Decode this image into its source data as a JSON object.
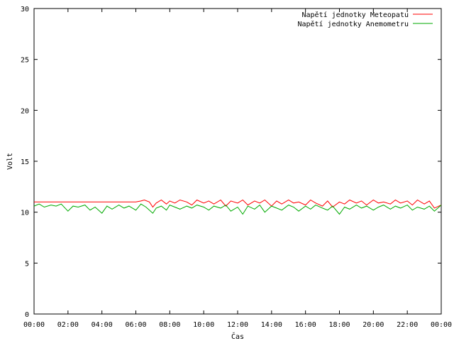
{
  "chart_data": {
    "type": "line",
    "title": "",
    "xlabel": "Čas",
    "ylabel": "Volt",
    "x_ticks": [
      "00:00",
      "02:00",
      "04:00",
      "06:00",
      "08:00",
      "10:00",
      "12:00",
      "14:00",
      "16:00",
      "18:00",
      "20:00",
      "22:00",
      "00:00"
    ],
    "x_range_hours": [
      0,
      24
    ],
    "y_ticks": [
      "0",
      "5",
      "10",
      "15",
      "20",
      "25",
      "30"
    ],
    "ylim": [
      0,
      30
    ],
    "grid": false,
    "legend_position": "top-right",
    "series": [
      {
        "name": "Napětí jednotky Meteopatu",
        "color": "#ff0000",
        "x_hours": [
          0,
          1,
          2,
          3,
          4,
          5,
          6,
          6.3,
          6.5,
          6.8,
          7,
          7.2,
          7.5,
          7.8,
          8,
          8.3,
          8.6,
          9,
          9.3,
          9.6,
          10,
          10.3,
          10.6,
          11,
          11.3,
          11.6,
          12,
          12.3,
          12.6,
          13,
          13.3,
          13.6,
          14,
          14.3,
          14.6,
          15,
          15.3,
          15.6,
          16,
          16.3,
          16.6,
          17,
          17.3,
          17.6,
          18,
          18.3,
          18.6,
          19,
          19.3,
          19.6,
          20,
          20.3,
          20.6,
          21,
          21.3,
          21.6,
          22,
          22.3,
          22.6,
          23,
          23.3,
          23.6,
          24
        ],
        "values": [
          11.0,
          11.0,
          11.0,
          11.0,
          11.0,
          11.0,
          11.0,
          11.1,
          11.2,
          11.0,
          10.5,
          10.9,
          11.2,
          10.8,
          11.1,
          10.9,
          11.2,
          11.0,
          10.7,
          11.2,
          10.9,
          11.1,
          10.8,
          11.2,
          10.6,
          11.1,
          10.9,
          11.2,
          10.7,
          11.1,
          10.9,
          11.2,
          10.6,
          11.1,
          10.8,
          11.2,
          10.9,
          11.0,
          10.7,
          11.2,
          10.9,
          10.6,
          11.1,
          10.5,
          11.0,
          10.8,
          11.2,
          10.9,
          11.1,
          10.7,
          11.2,
          10.9,
          11.0,
          10.8,
          11.2,
          10.9,
          11.1,
          10.7,
          11.2,
          10.8,
          11.1,
          10.4,
          10.7
        ]
      },
      {
        "name": "Napětí jednotky Anemometru",
        "color": "#00aa00",
        "x_hours": [
          0,
          0.3,
          0.6,
          1,
          1.3,
          1.6,
          2,
          2.3,
          2.6,
          3,
          3.3,
          3.6,
          4,
          4.3,
          4.6,
          5,
          5.3,
          5.6,
          6,
          6.3,
          6.6,
          7,
          7.2,
          7.5,
          7.8,
          8,
          8.3,
          8.6,
          9,
          9.3,
          9.6,
          10,
          10.3,
          10.6,
          11,
          11.3,
          11.6,
          12,
          12.3,
          12.6,
          13,
          13.3,
          13.6,
          14,
          14.3,
          14.6,
          15,
          15.3,
          15.6,
          16,
          16.3,
          16.6,
          17,
          17.3,
          17.6,
          18,
          18.3,
          18.6,
          19,
          19.3,
          19.6,
          20,
          20.3,
          20.6,
          21,
          21.3,
          21.6,
          22,
          22.3,
          22.6,
          23,
          23.3,
          23.6,
          24
        ],
        "values": [
          10.6,
          10.8,
          10.5,
          10.7,
          10.6,
          10.8,
          10.1,
          10.6,
          10.5,
          10.7,
          10.2,
          10.5,
          9.9,
          10.6,
          10.3,
          10.7,
          10.4,
          10.6,
          10.2,
          10.8,
          10.5,
          9.9,
          10.4,
          10.6,
          10.2,
          10.7,
          10.5,
          10.3,
          10.6,
          10.4,
          10.7,
          10.5,
          10.2,
          10.6,
          10.4,
          10.7,
          10.1,
          10.5,
          9.8,
          10.6,
          10.3,
          10.7,
          10.0,
          10.6,
          10.4,
          10.2,
          10.7,
          10.5,
          10.1,
          10.6,
          10.3,
          10.7,
          10.4,
          10.2,
          10.6,
          9.8,
          10.5,
          10.3,
          10.7,
          10.4,
          10.6,
          10.2,
          10.5,
          10.7,
          10.3,
          10.6,
          10.4,
          10.7,
          10.2,
          10.5,
          10.3,
          10.6,
          10.1,
          10.7
        ]
      }
    ]
  }
}
